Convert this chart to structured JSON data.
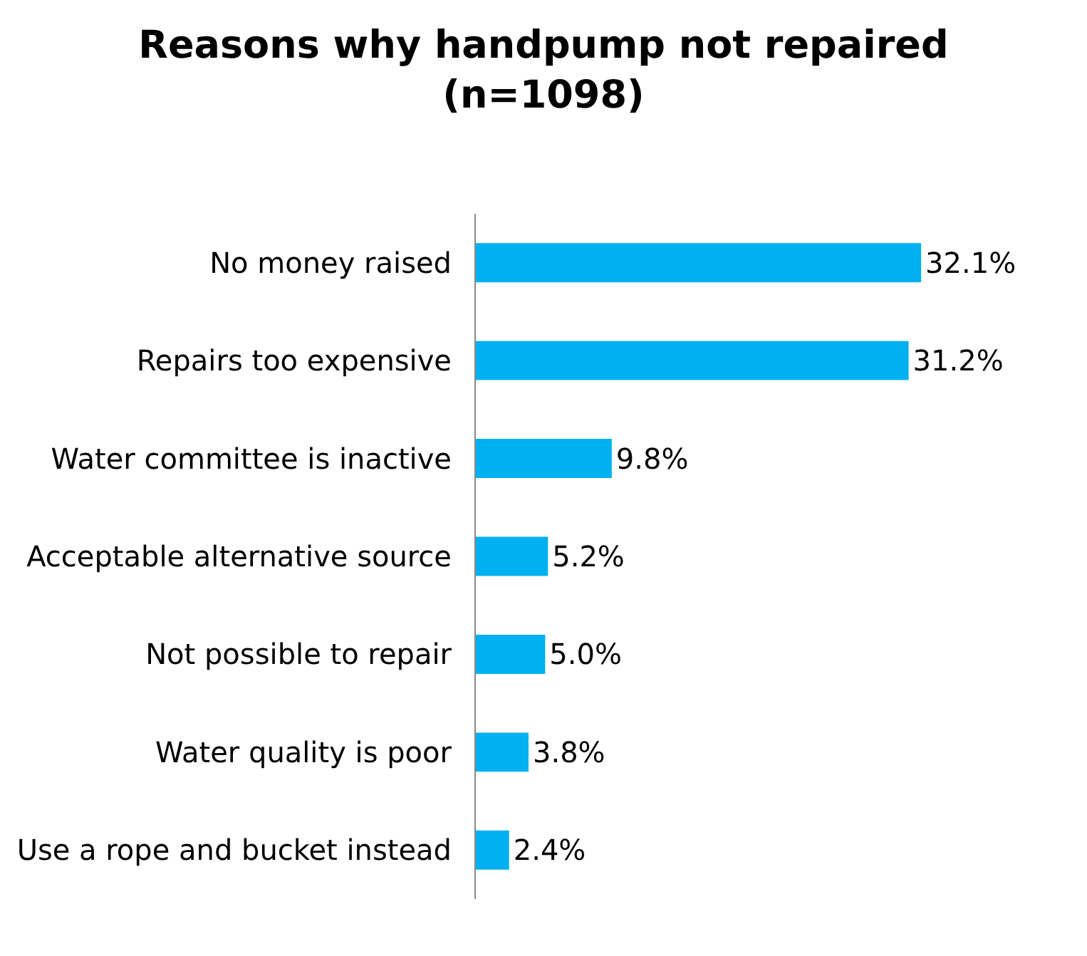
{
  "chart_data": {
    "type": "bar",
    "orientation": "horizontal",
    "title": "Reasons why handpump not repaired\n(n=1098)",
    "categories": [
      "No money raised",
      "Repairs too expensive",
      "Water committee is inactive",
      "Acceptable alternative source",
      "Not possible to repair",
      "Water quality is poor",
      "Use a rope and bucket instead"
    ],
    "values": [
      32.1,
      31.2,
      9.8,
      5.2,
      5.0,
      3.8,
      2.4
    ],
    "value_labels": [
      "32.1%",
      "31.2%",
      "9.8%",
      "5.2%",
      "5.0%",
      "3.8%",
      "2.4%"
    ],
    "color": "#00b0f0"
  }
}
